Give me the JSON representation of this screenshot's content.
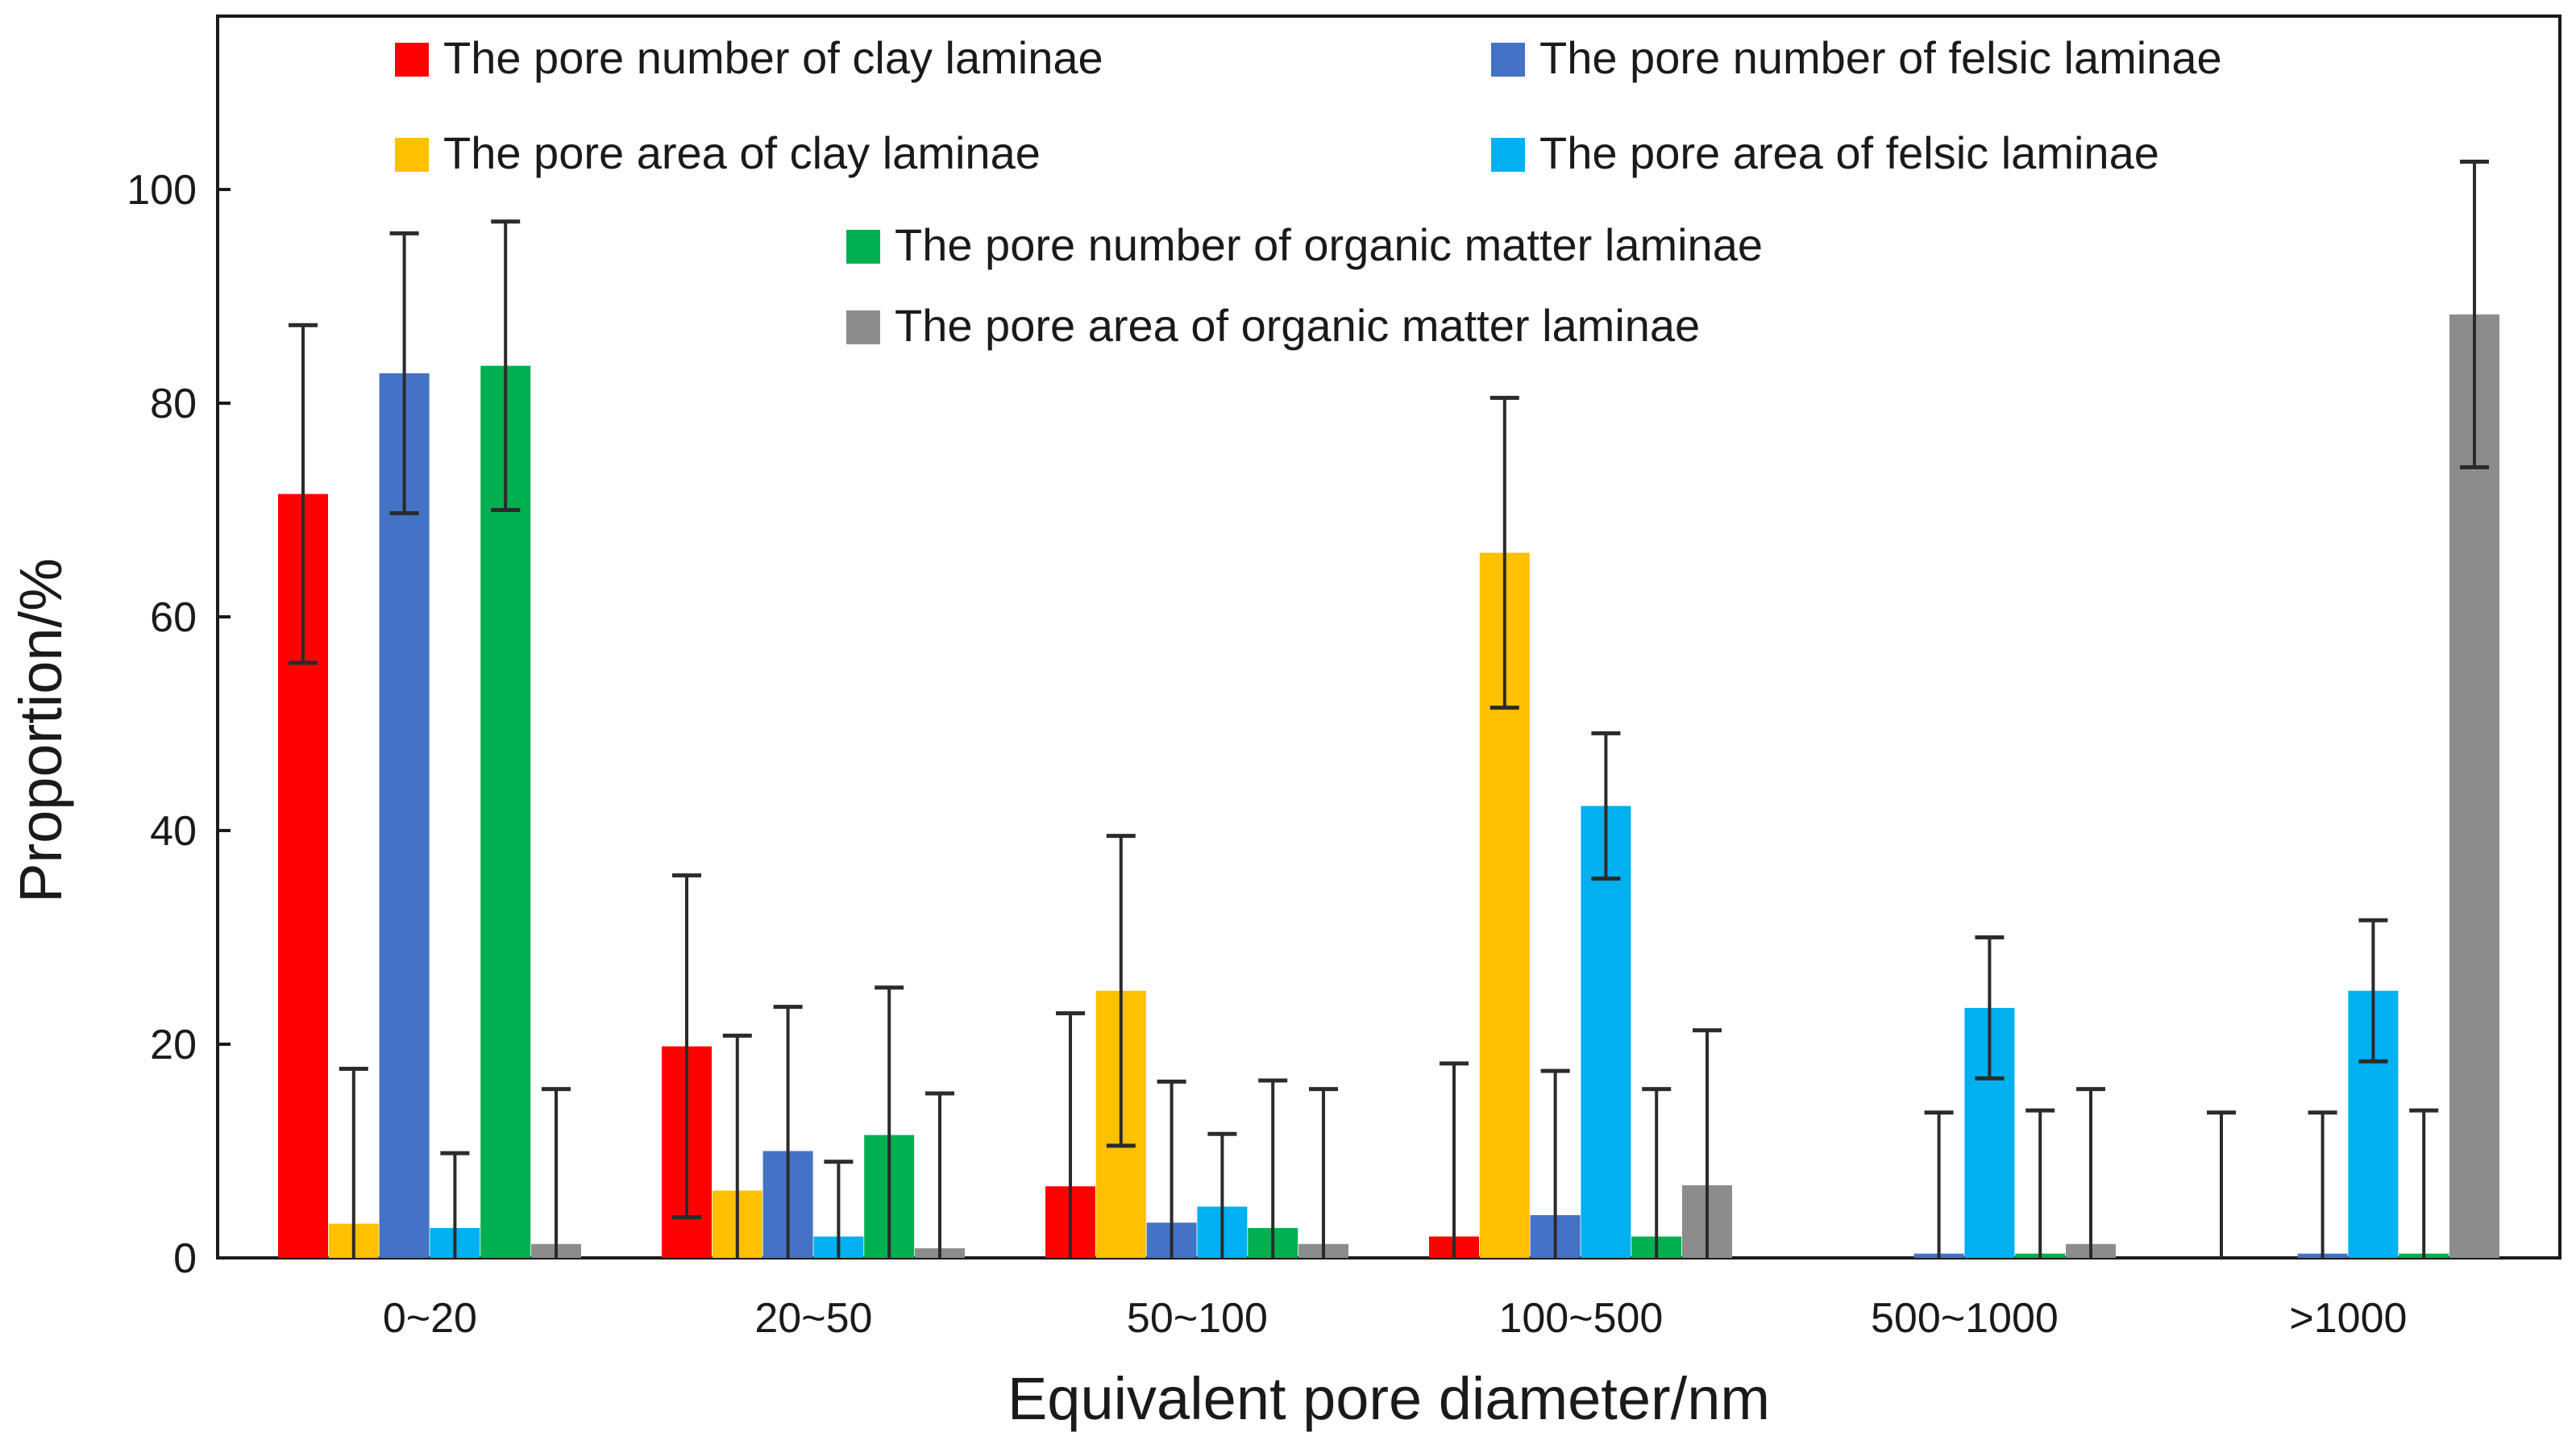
{
  "chart_data": {
    "type": "bar",
    "xlabel": "Equivalent pore diameter/nm",
    "ylabel": "Proportion/%",
    "ylim": [
      0,
      120
    ],
    "yticks": [
      0,
      20,
      40,
      60,
      80,
      100
    ],
    "grid": false,
    "legend_position": "top",
    "categories": [
      "0~20",
      "20~50",
      "50~100",
      "100~500",
      "500~1000",
      ">1000"
    ],
    "series": [
      {
        "name": "The pore number of clay laminae",
        "color": "#ff0000",
        "values": [
          71.5,
          19.8,
          6.7,
          2.0,
          0,
          0
        ],
        "error": [
          15.8,
          16.0,
          16.2,
          16.2,
          null,
          13.6
        ]
      },
      {
        "name": "The pore area of clay laminae",
        "color": "#ffc000",
        "values": [
          3.2,
          6.3,
          25.0,
          66.0,
          0,
          0
        ],
        "error": [
          14.5,
          14.5,
          14.5,
          14.5,
          null,
          null
        ]
      },
      {
        "name": "The pore number of felsic laminae",
        "color": "#4472c4",
        "values": [
          82.8,
          10.0,
          3.3,
          4.0,
          0.4,
          0.4
        ],
        "error": [
          13.1,
          13.5,
          13.2,
          13.5,
          13.2,
          13.2
        ]
      },
      {
        "name": "The pore area of felsic laminae",
        "color": "#00b0f0",
        "values": [
          2.8,
          2.0,
          4.8,
          42.3,
          23.4,
          25.0
        ],
        "error": [
          7.0,
          7.0,
          6.8,
          6.8,
          6.6,
          6.6
        ]
      },
      {
        "name": "The pore number of organic matter laminae",
        "color": "#00b050",
        "values": [
          83.5,
          11.5,
          2.8,
          2.0,
          0.4,
          0.4
        ],
        "error": [
          13.5,
          13.8,
          13.8,
          13.8,
          13.4,
          13.4
        ]
      },
      {
        "name": "The pore area of organic matter laminae",
        "color": "#8c8c8c",
        "values": [
          1.3,
          0.9,
          1.3,
          6.8,
          1.3,
          88.3
        ],
        "error": [
          14.5,
          14.5,
          14.5,
          14.5,
          14.5,
          14.3
        ]
      }
    ]
  }
}
